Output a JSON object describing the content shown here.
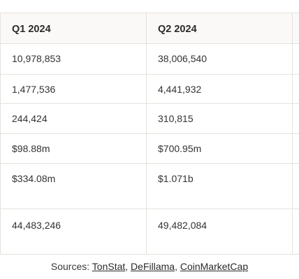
{
  "table": {
    "headers": [
      "Q1 2024",
      "Q2 2024"
    ],
    "rows": [
      [
        "10,978,853",
        "38,006,540"
      ],
      [
        "1,477,536",
        "4,441,932"
      ],
      [
        "244,424",
        "310,815"
      ],
      [
        "$98.88m",
        "$700.95m"
      ],
      [
        "$334.08m",
        "$1.071b"
      ],
      [
        "44,483,246",
        "49,482,084"
      ]
    ]
  },
  "caption": {
    "prefix": "Sources: ",
    "links": [
      "TonStat",
      "DeFillama",
      "CoinMarketCap"
    ],
    "sep": ", "
  }
}
